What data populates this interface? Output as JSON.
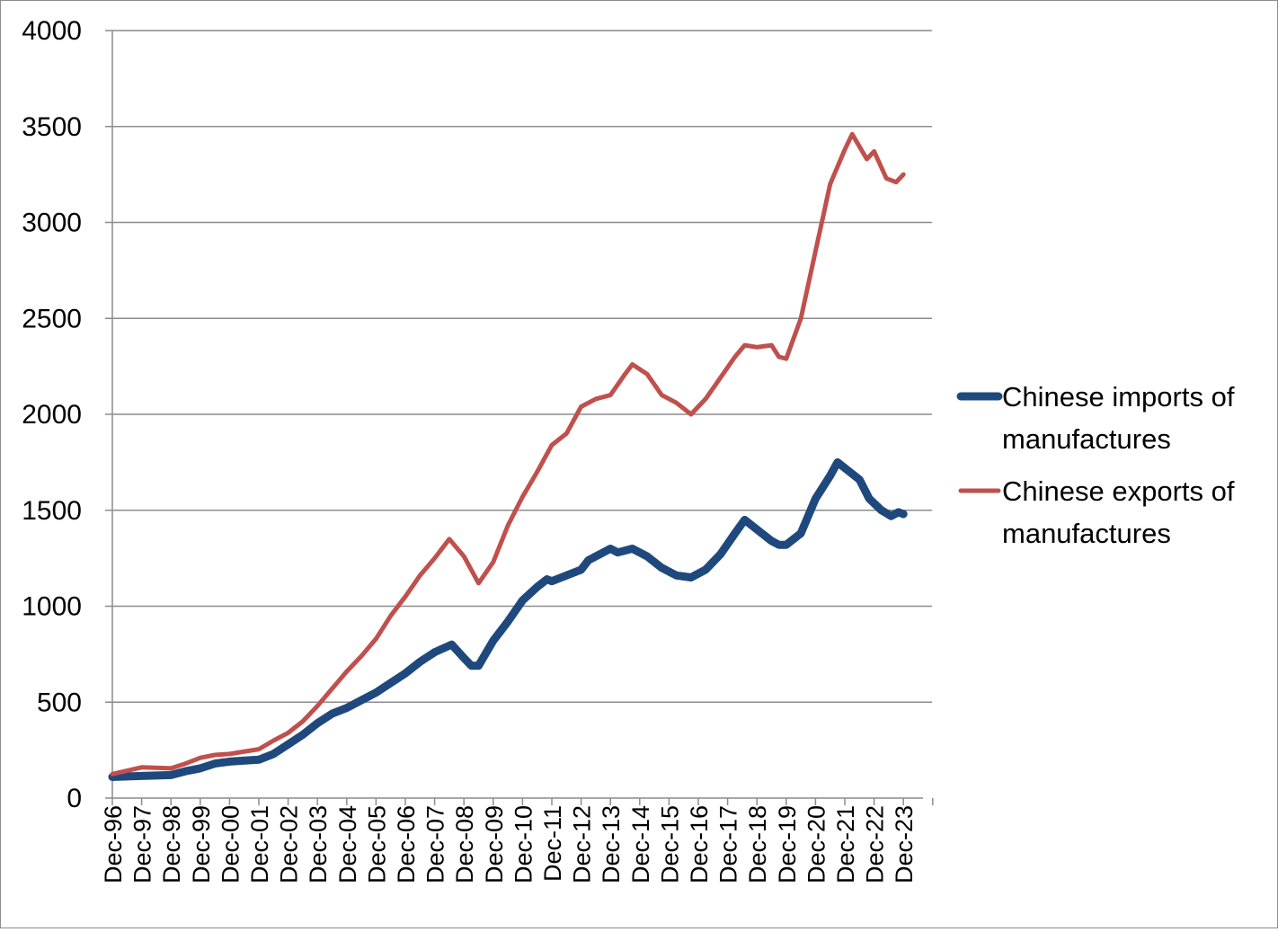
{
  "chart_data": {
    "type": "line",
    "title": "",
    "xlabel": "",
    "ylabel": "",
    "ylim": [
      0,
      4000
    ],
    "yticks": [
      0,
      500,
      1000,
      1500,
      2000,
      2500,
      3000,
      3500,
      4000
    ],
    "x_tick_labels": [
      "Dec-96",
      "Dec-97",
      "Dec-98",
      "Dec-99",
      "Dec-00",
      "Dec-01",
      "Dec-02",
      "Dec-03",
      "Dec-04",
      "Dec-05",
      "Dec-06",
      "Dec-07",
      "Dec-08",
      "Dec-09",
      "Dec-10",
      "Dec-11",
      "Dec-12",
      "Dec-13",
      "Dec-14",
      "Dec-15",
      "Dec-16",
      "Dec-17",
      "Dec-18",
      "Dec-19",
      "Dec-20",
      "Dec-21",
      "Dec-22",
      "Dec-23"
    ],
    "x_start": "1996-12",
    "grid": "horizontal",
    "legend_position": "right",
    "series": [
      {
        "name": "Chinese imports of manufactures",
        "color": "#1F497D",
        "points": [
          [
            "1996-12",
            110
          ],
          [
            "1997-12",
            115
          ],
          [
            "1998-12",
            120
          ],
          [
            "1999-06",
            140
          ],
          [
            "1999-12",
            155
          ],
          [
            "2000-06",
            180
          ],
          [
            "2000-12",
            190
          ],
          [
            "2001-12",
            200
          ],
          [
            "2002-06",
            230
          ],
          [
            "2002-12",
            280
          ],
          [
            "2003-06",
            330
          ],
          [
            "2003-12",
            390
          ],
          [
            "2004-06",
            440
          ],
          [
            "2004-12",
            470
          ],
          [
            "2005-06",
            510
          ],
          [
            "2005-12",
            550
          ],
          [
            "2006-06",
            600
          ],
          [
            "2006-12",
            650
          ],
          [
            "2007-06",
            710
          ],
          [
            "2007-12",
            760
          ],
          [
            "2008-07",
            800
          ],
          [
            "2008-12",
            730
          ],
          [
            "2009-03",
            690
          ],
          [
            "2009-06",
            690
          ],
          [
            "2009-12",
            820
          ],
          [
            "2010-06",
            920
          ],
          [
            "2010-12",
            1030
          ],
          [
            "2011-06",
            1100
          ],
          [
            "2011-10",
            1140
          ],
          [
            "2011-12",
            1130
          ],
          [
            "2012-06",
            1160
          ],
          [
            "2012-12",
            1190
          ],
          [
            "2013-03",
            1240
          ],
          [
            "2013-12",
            1300
          ],
          [
            "2014-03",
            1280
          ],
          [
            "2014-09",
            1300
          ],
          [
            "2015-03",
            1260
          ],
          [
            "2015-09",
            1200
          ],
          [
            "2016-03",
            1160
          ],
          [
            "2016-09",
            1150
          ],
          [
            "2017-03",
            1190
          ],
          [
            "2017-09",
            1270
          ],
          [
            "2018-03",
            1380
          ],
          [
            "2018-07",
            1450
          ],
          [
            "2018-12",
            1400
          ],
          [
            "2019-06",
            1340
          ],
          [
            "2019-09",
            1320
          ],
          [
            "2019-12",
            1320
          ],
          [
            "2020-06",
            1380
          ],
          [
            "2020-12",
            1560
          ],
          [
            "2021-06",
            1680
          ],
          [
            "2021-09",
            1750
          ],
          [
            "2022-01",
            1710
          ],
          [
            "2022-06",
            1660
          ],
          [
            "2022-10",
            1560
          ],
          [
            "2023-03",
            1500
          ],
          [
            "2023-07",
            1470
          ],
          [
            "2023-10",
            1490
          ],
          [
            "2023-12",
            1480
          ]
        ]
      },
      {
        "name": "Chinese exports of manufactures",
        "color": "#C0504D",
        "points": [
          [
            "1996-12",
            125
          ],
          [
            "1997-12",
            160
          ],
          [
            "1998-12",
            155
          ],
          [
            "1999-06",
            180
          ],
          [
            "1999-12",
            210
          ],
          [
            "2000-06",
            225
          ],
          [
            "2000-12",
            230
          ],
          [
            "2001-12",
            255
          ],
          [
            "2002-06",
            300
          ],
          [
            "2002-12",
            340
          ],
          [
            "2003-06",
            400
          ],
          [
            "2003-12",
            480
          ],
          [
            "2004-06",
            570
          ],
          [
            "2004-12",
            660
          ],
          [
            "2005-06",
            740
          ],
          [
            "2005-12",
            830
          ],
          [
            "2006-06",
            950
          ],
          [
            "2006-12",
            1050
          ],
          [
            "2007-06",
            1160
          ],
          [
            "2007-12",
            1250
          ],
          [
            "2008-06",
            1350
          ],
          [
            "2008-12",
            1260
          ],
          [
            "2009-06",
            1120
          ],
          [
            "2009-12",
            1230
          ],
          [
            "2010-06",
            1420
          ],
          [
            "2010-12",
            1570
          ],
          [
            "2011-06",
            1700
          ],
          [
            "2011-12",
            1840
          ],
          [
            "2012-06",
            1900
          ],
          [
            "2012-12",
            2040
          ],
          [
            "2013-06",
            2080
          ],
          [
            "2013-12",
            2100
          ],
          [
            "2014-06",
            2210
          ],
          [
            "2014-09",
            2260
          ],
          [
            "2015-03",
            2210
          ],
          [
            "2015-09",
            2100
          ],
          [
            "2016-03",
            2060
          ],
          [
            "2016-09",
            2000
          ],
          [
            "2017-03",
            2080
          ],
          [
            "2017-09",
            2190
          ],
          [
            "2018-03",
            2300
          ],
          [
            "2018-07",
            2360
          ],
          [
            "2018-12",
            2350
          ],
          [
            "2019-06",
            2360
          ],
          [
            "2019-09",
            2300
          ],
          [
            "2019-12",
            2290
          ],
          [
            "2020-06",
            2500
          ],
          [
            "2020-12",
            2850
          ],
          [
            "2021-06",
            3200
          ],
          [
            "2021-12",
            3380
          ],
          [
            "2022-03",
            3460
          ],
          [
            "2022-09",
            3330
          ],
          [
            "2022-12",
            3370
          ],
          [
            "2023-05",
            3230
          ],
          [
            "2023-09",
            3210
          ],
          [
            "2023-12",
            3250
          ]
        ]
      }
    ]
  }
}
